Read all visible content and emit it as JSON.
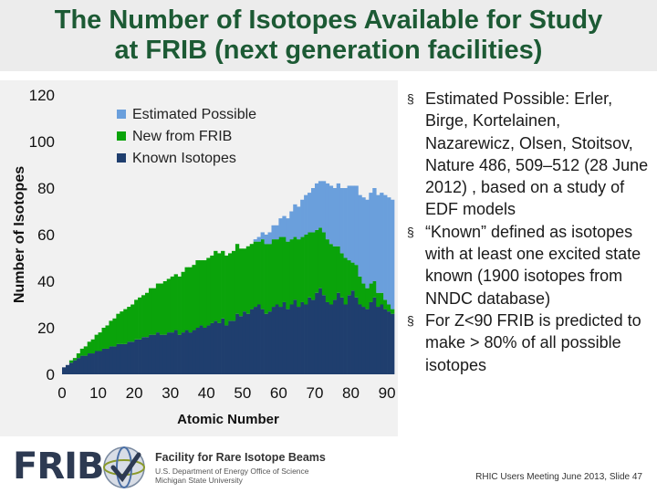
{
  "title_line1": "The Number of Isotopes Available for Study",
  "title_line2": "at FRIB (next generation facilities)",
  "bullets": [
    "Estimated Possible: Erler, Birge, Kortelainen, Nazarewicz, Olsen, Stoitsov, Nature 486, 509–512 (28 June 2012) , based on a study of EDF models",
    "“Known” defined as isotopes with at least one excited state known (1900 isotopes from NNDC database)",
    "For Z<90 FRIB is predicted to make > 80% of all possible isotopes"
  ],
  "bullet_marker": "§",
  "footer": {
    "logo": "FRIB",
    "facility_name": "Facility for Rare Isotope Beams",
    "facility_sub": [
      "U.S. Department of Energy Office of Science",
      "Michigan State University"
    ],
    "slide_ref": "RHIC Users Meeting June 2013, Slide 47"
  },
  "colors": {
    "title": "#1c5a34",
    "estimated": "#6a9fdc",
    "new": "#0aa30a",
    "known": "#1f3e6e"
  },
  "chart_data": {
    "type": "bar",
    "stacked": true,
    "xlabel": "Atomic Number",
    "ylabel": "Number of Isotopes",
    "xlim": [
      0,
      92
    ],
    "ylim": [
      0,
      120
    ],
    "xticks": [
      0,
      10,
      20,
      30,
      40,
      50,
      60,
      70,
      80,
      90
    ],
    "yticks": [
      0,
      20,
      40,
      60,
      80,
      100,
      120
    ],
    "legend_position": "top-left",
    "x": [
      1,
      2,
      3,
      4,
      5,
      6,
      7,
      8,
      9,
      10,
      11,
      12,
      13,
      14,
      15,
      16,
      17,
      18,
      19,
      20,
      21,
      22,
      23,
      24,
      25,
      26,
      27,
      28,
      29,
      30,
      31,
      32,
      33,
      34,
      35,
      36,
      37,
      38,
      39,
      40,
      41,
      42,
      43,
      44,
      45,
      46,
      47,
      48,
      49,
      50,
      51,
      52,
      53,
      54,
      55,
      56,
      57,
      58,
      59,
      60,
      61,
      62,
      63,
      64,
      65,
      66,
      67,
      68,
      69,
      70,
      71,
      72,
      73,
      74,
      75,
      76,
      77,
      78,
      79,
      80,
      81,
      82,
      83,
      84,
      85,
      86,
      87,
      88,
      89,
      90,
      91,
      92
    ],
    "series": [
      {
        "name": "Known Isotopes",
        "color": "#1f3e6e",
        "values": [
          3,
          4,
          5,
          6,
          7,
          8,
          8,
          9,
          9,
          10,
          10,
          11,
          11,
          12,
          12,
          13,
          13,
          13,
          14,
          14,
          15,
          15,
          16,
          16,
          17,
          17,
          18,
          17,
          17,
          18,
          18,
          19,
          17,
          18,
          19,
          18,
          19,
          20,
          21,
          20,
          21,
          22,
          23,
          22,
          24,
          21,
          23,
          23,
          26,
          25,
          27,
          26,
          28,
          29,
          30,
          28,
          26,
          27,
          29,
          30,
          29,
          31,
          28,
          30,
          32,
          29,
          31,
          30,
          33,
          32,
          35,
          37,
          34,
          31,
          30,
          32,
          35,
          33,
          30,
          34,
          36,
          33,
          30,
          29,
          28,
          31,
          33,
          29,
          30,
          28,
          27,
          26
        ]
      },
      {
        "name": "New from FRIB",
        "color": "#0aa30a",
        "values": [
          0,
          0,
          1,
          1,
          2,
          3,
          4,
          5,
          6,
          7,
          8,
          9,
          10,
          11,
          12,
          13,
          14,
          15,
          15,
          16,
          17,
          18,
          18,
          19,
          20,
          20,
          21,
          22,
          23,
          23,
          24,
          24,
          25,
          26,
          27,
          28,
          28,
          29,
          28,
          29,
          29,
          29,
          30,
          30,
          29,
          30,
          29,
          30,
          30,
          29,
          27,
          29,
          28,
          28,
          27,
          30,
          30,
          29,
          29,
          28,
          30,
          28,
          29,
          28,
          27,
          29,
          28,
          30,
          28,
          29,
          27,
          26,
          27,
          27,
          26,
          23,
          20,
          19,
          20,
          15,
          12,
          14,
          12,
          10,
          9,
          8,
          7,
          6,
          5,
          4,
          3,
          2
        ]
      },
      {
        "name": "Estimated Possible",
        "color": "#6a9fdc",
        "values": [
          0,
          0,
          0,
          0,
          0,
          0,
          0,
          0,
          0,
          0,
          0,
          0,
          0,
          0,
          0,
          0,
          0,
          0,
          0,
          0,
          0,
          0,
          0,
          0,
          0,
          0,
          0,
          0,
          0,
          0,
          0,
          0,
          0,
          0,
          0,
          0,
          0,
          0,
          0,
          0,
          0,
          0,
          0,
          0,
          0,
          0,
          0,
          0,
          0,
          0,
          0,
          0,
          0,
          1,
          2,
          3,
          4,
          5,
          6,
          6,
          8,
          9,
          10,
          12,
          14,
          14,
          16,
          17,
          17,
          19,
          20,
          20,
          22,
          24,
          25,
          25,
          27,
          28,
          30,
          32,
          33,
          34,
          35,
          37,
          38,
          39,
          40,
          42,
          43,
          45,
          46,
          47
        ]
      }
    ]
  }
}
